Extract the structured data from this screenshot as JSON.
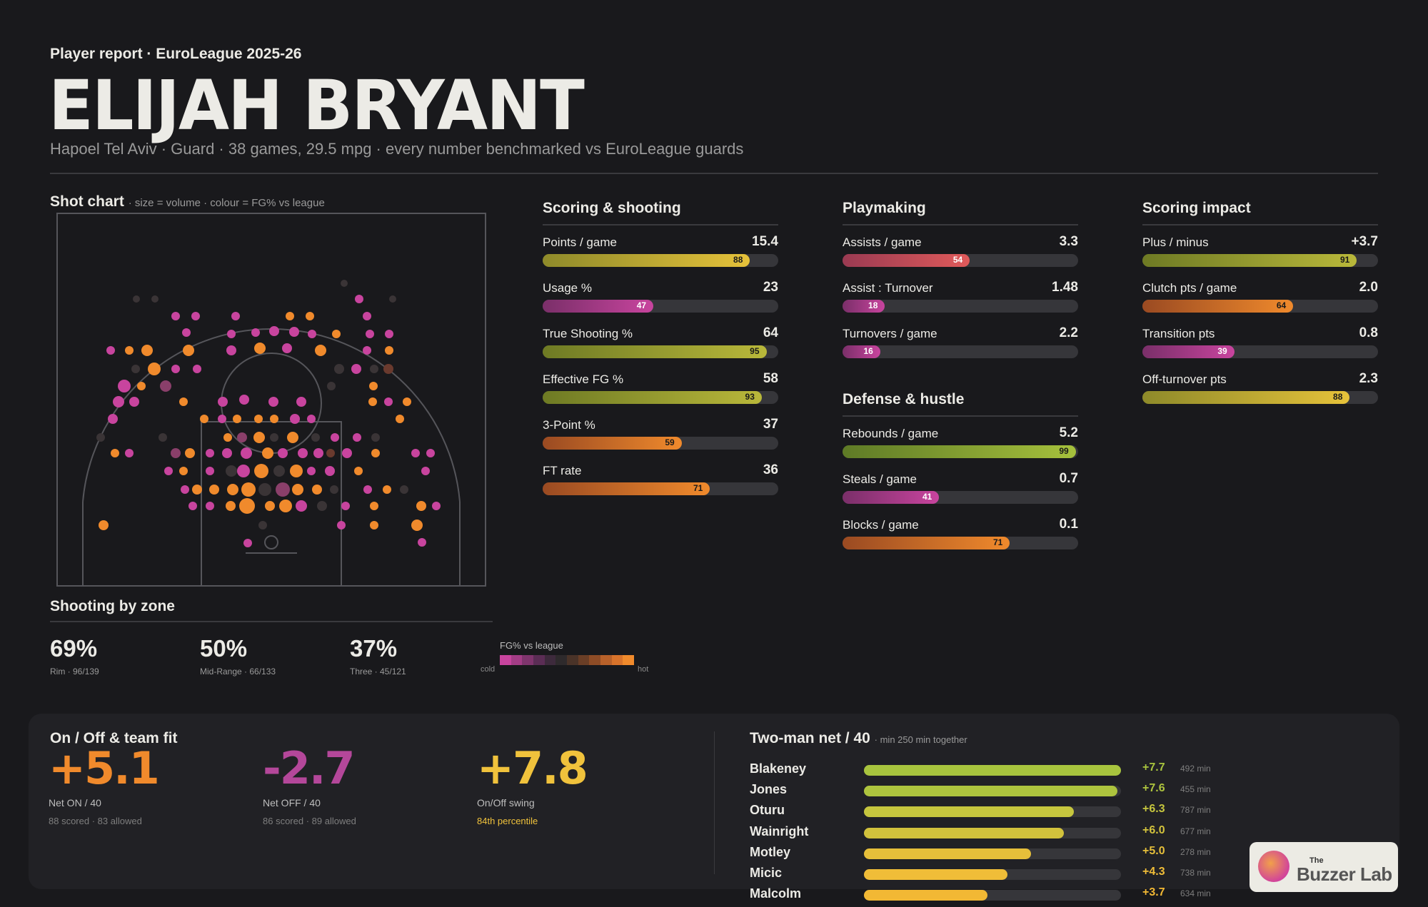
{
  "header": {
    "kicker": "Player report · EuroLeague 2025-26",
    "player": "ELIJAH BRYANT",
    "subtitle": "Hapoel Tel Aviv · Guard · 38 games, 29.5 mpg · every number benchmarked vs EuroLeague guards"
  },
  "shot_chart": {
    "title": "Shot chart",
    "note": "· size = volume · colour = FG% vs league"
  },
  "zones": {
    "title": "Shooting by zone",
    "items": [
      {
        "pct": "69%",
        "label": "Rim · 96/139"
      },
      {
        "pct": "50%",
        "label": "Mid-Range · 66/133"
      },
      {
        "pct": "37%",
        "label": "Three · 45/121"
      }
    ],
    "legend_title": "FG% vs league",
    "legend_cold": "cold",
    "legend_hot": "hot"
  },
  "columns": [
    {
      "title": "Scoring & shooting",
      "stats": [
        {
          "name": "Points / game",
          "value": "15.4",
          "pctl": 88,
          "color": "yellow"
        },
        {
          "name": "Usage %",
          "value": "23",
          "pctl": 47,
          "color": "magenta"
        },
        {
          "name": "True Shooting %",
          "value": "64",
          "pctl": 95,
          "color": "green"
        },
        {
          "name": "Effective FG %",
          "value": "58",
          "pctl": 93,
          "color": "green"
        },
        {
          "name": "3-Point %",
          "value": "37",
          "pctl": 59,
          "color": "orange"
        },
        {
          "name": "FT rate",
          "value": "36",
          "pctl": 71,
          "color": "orange"
        }
      ]
    },
    {
      "title": "Playmaking",
      "stats": [
        {
          "name": "Assists / game",
          "value": "3.3",
          "pctl": 54,
          "color": "red"
        },
        {
          "name": "Assist : Turnover",
          "value": "1.48",
          "pctl": 18,
          "color": "magenta"
        },
        {
          "name": "Turnovers / game",
          "value": "2.2",
          "pctl": 16,
          "color": "magenta"
        }
      ]
    },
    {
      "title": "Defense & hustle",
      "stats": [
        {
          "name": "Rebounds / game",
          "value": "5.2",
          "pctl": 99,
          "color": "lime"
        },
        {
          "name": "Steals / game",
          "value": "0.7",
          "pctl": 41,
          "color": "magenta"
        },
        {
          "name": "Blocks / game",
          "value": "0.1",
          "pctl": 71,
          "color": "orange"
        }
      ]
    },
    {
      "title": "Scoring impact",
      "stats": [
        {
          "name": "Plus / minus",
          "value": "+3.7",
          "pctl": 91,
          "color": "green"
        },
        {
          "name": "Clutch pts / game",
          "value": "2.0",
          "pctl": 64,
          "color": "orange"
        },
        {
          "name": "Transition pts",
          "value": "0.8",
          "pctl": 39,
          "color": "magenta"
        },
        {
          "name": "Off-turnover pts",
          "value": "2.3",
          "pctl": 88,
          "color": "yellow"
        }
      ]
    }
  ],
  "on_off": {
    "title": "On / Off & team fit",
    "items": [
      {
        "value": "+5.1",
        "label": "Net ON / 40",
        "sub": "88 scored · 83 allowed",
        "color": "#f08a2c"
      },
      {
        "value": "-2.7",
        "label": "Net OFF / 40",
        "sub": "86 scored · 89 allowed",
        "color": "#b4479a"
      },
      {
        "value": "+7.8",
        "label": "On/Off swing",
        "sub": "84th percentile",
        "color": "#f0c23c"
      }
    ]
  },
  "two_man": {
    "title": "Two-man net / 40",
    "note": "· min 250 min together",
    "rows": [
      {
        "name": "Blakeney",
        "net": "+7.7",
        "share": 1.0,
        "min": "492 min"
      },
      {
        "name": "Jones",
        "net": "+7.6",
        "share": 0.987,
        "min": "455 min"
      },
      {
        "name": "Oturu",
        "net": "+6.3",
        "share": 0.818,
        "min": "787 min"
      },
      {
        "name": "Wainright",
        "net": "+6.0",
        "share": 0.779,
        "min": "677 min"
      },
      {
        "name": "Motley",
        "net": "+5.0",
        "share": 0.649,
        "min": "278 min"
      },
      {
        "name": "Micic",
        "net": "+4.3",
        "share": 0.558,
        "min": "738 min"
      },
      {
        "name": "Malcolm",
        "net": "+3.7",
        "share": 0.48,
        "min": "634 min"
      }
    ]
  },
  "brand": {
    "the": "The",
    "name": "Buzzer Lab"
  },
  "colors": {
    "background": "#19191c",
    "hot": "#f08a2c",
    "cold": "#c8449e",
    "green": "#9cb83a",
    "yellow": "#e6c23a"
  }
}
